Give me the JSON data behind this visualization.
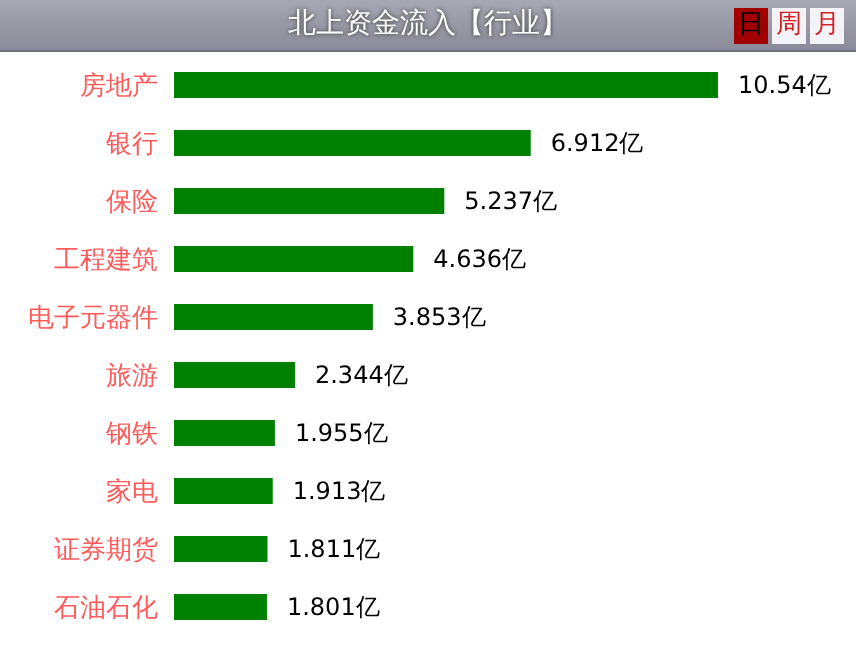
{
  "chart_data": {
    "type": "bar",
    "orientation": "horizontal",
    "title": "北上资金流入【行业】",
    "annotations": [
      "日",
      "周",
      "月"
    ],
    "categories": [
      "房地产",
      "银行",
      "保险",
      "工程建筑",
      "电子元器件",
      "旅游",
      "钢铁",
      "家电",
      "证券期货",
      "石油石化"
    ],
    "values": [
      10.54,
      6.912,
      5.237,
      4.636,
      3.853,
      2.344,
      1.955,
      1.913,
      1.811,
      1.801
    ],
    "value_labels": [
      "10.54亿",
      "6.912亿",
      "5.237亿",
      "4.636亿",
      "3.853亿",
      "2.344亿",
      "1.955亿",
      "1.913亿",
      "1.811亿",
      "1.801亿"
    ],
    "color": "#008000"
  }
}
